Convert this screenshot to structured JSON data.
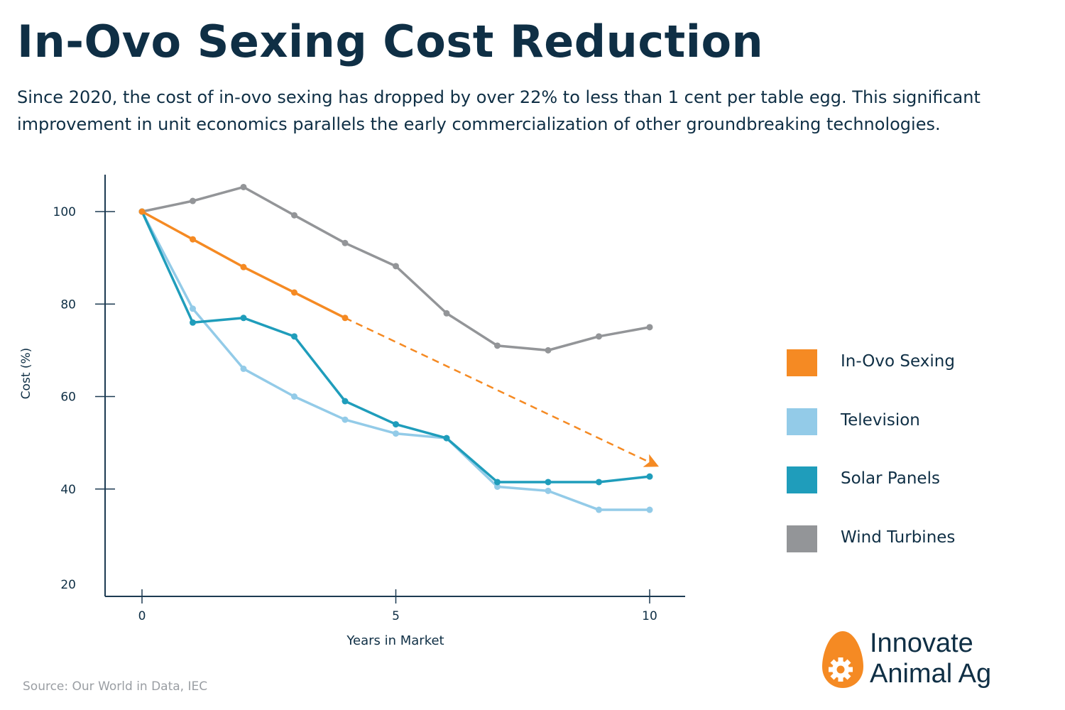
{
  "header": {
    "title": "In-Ovo Sexing Cost Reduction",
    "subtitle": "Since 2020, the cost of in-ovo sexing has dropped by over 22% to less than 1 cent per table egg. This significant improvement in unit economics parallels the early commercialization of other groundbreaking technologies."
  },
  "footer": {
    "source": "Source: Our World in Data, IEC",
    "logo_line1": "Innovate",
    "logo_line2": "Animal Ag",
    "logo_icon": "egg-gear-icon"
  },
  "colors": {
    "text": "#0f2f45",
    "axis": "#1d3b52",
    "in_ovo": "#f58a23",
    "television": "#93cbe8",
    "solar": "#1f9dbb",
    "wind": "#939598",
    "source_text": "#9a9ea3"
  },
  "chart_data": {
    "type": "line",
    "title": "In-Ovo Sexing Cost Reduction",
    "xlabel": "Years in Market",
    "ylabel": "Cost (%)",
    "xlim": [
      -0.7,
      10.7
    ],
    "ylim": [
      17,
      108
    ],
    "x_ticks": [
      0,
      5,
      10
    ],
    "x_tick_labels": [
      "0",
      "5",
      "10"
    ],
    "y_ticks": [
      20,
      40,
      60,
      80,
      100
    ],
    "y_tick_labels": [
      "20",
      "40",
      "60",
      "80",
      "100"
    ],
    "grid": false,
    "legend_position": "right",
    "series": [
      {
        "name": "Wind Turbines",
        "key": "wind",
        "color": "#939598",
        "x": [
          0,
          1,
          2,
          3,
          4,
          5,
          6,
          7,
          8,
          9,
          10
        ],
        "values": [
          100,
          102.3,
          105.3,
          99.2,
          93.2,
          88.2,
          78,
          71,
          70,
          73,
          75
        ]
      },
      {
        "name": "Television",
        "key": "television",
        "color": "#93cbe8",
        "x": [
          0,
          1,
          2,
          3,
          4,
          5,
          6,
          7,
          8,
          9,
          10
        ],
        "values": [
          100,
          79,
          66,
          60,
          55,
          52,
          51,
          40.5,
          39.6,
          35.5,
          35.5
        ]
      },
      {
        "name": "Solar Panels",
        "key": "solar",
        "color": "#1f9dbb",
        "x": [
          0,
          1,
          2,
          3,
          4,
          5,
          6,
          7,
          8,
          9,
          10
        ],
        "values": [
          100,
          76,
          77,
          73,
          59,
          54,
          51,
          41.5,
          41.5,
          41.5,
          42.7
        ]
      },
      {
        "name": "In-Ovo Sexing",
        "key": "in_ovo",
        "color": "#f58a23",
        "x": [
          0,
          1,
          2,
          3,
          4
        ],
        "values": [
          100,
          94,
          88,
          82.5,
          77
        ],
        "projection": {
          "x": [
            4,
            10.15
          ],
          "values": [
            77,
            45
          ],
          "style": "dashed-arrow"
        }
      }
    ],
    "legend": [
      {
        "label": "In-Ovo Sexing",
        "color": "#f58a23"
      },
      {
        "label": "Television",
        "color": "#93cbe8"
      },
      {
        "label": "Solar Panels",
        "color": "#1f9dbb"
      },
      {
        "label": "Wind Turbines",
        "color": "#939598"
      }
    ]
  }
}
